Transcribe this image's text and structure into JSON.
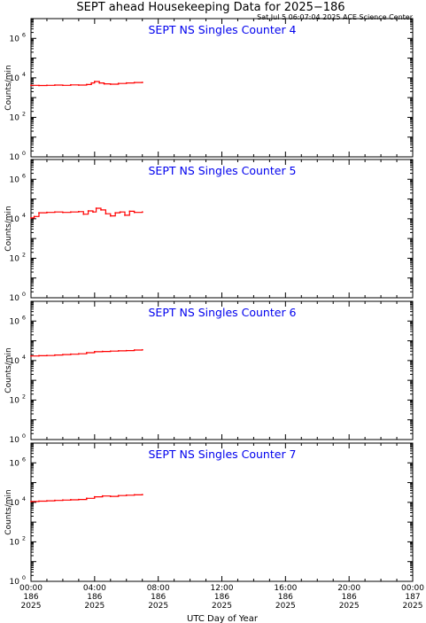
{
  "header": {
    "title": "SEPT ahead Housekeeping Data for 2025−186",
    "subtitle": "Sat Jul  5 06:07:04 2025 ACE Science Center"
  },
  "colors": {
    "series": "#ff0000",
    "panel_title": "#0000ee",
    "axis": "#000000"
  },
  "axis": {
    "xlabel": "UTC Day of Year",
    "ylabel": "Counts/min",
    "x_ticks": [
      {
        "t": 0,
        "time": "00:00",
        "doy": "186",
        "year": "2025"
      },
      {
        "t": 4,
        "time": "04:00",
        "doy": "186",
        "year": "2025"
      },
      {
        "t": 8,
        "time": "08:00",
        "doy": "186",
        "year": "2025"
      },
      {
        "t": 12,
        "time": "12:00",
        "doy": "186",
        "year": "2025"
      },
      {
        "t": 16,
        "time": "16:00",
        "doy": "186",
        "year": "2025"
      },
      {
        "t": 20,
        "time": "20:00",
        "doy": "186",
        "year": "2025"
      },
      {
        "t": 24,
        "time": "00:00",
        "doy": "187",
        "year": "2025"
      }
    ],
    "y_ticks": [
      {
        "exp": 0,
        "base": "10",
        "sup": "0"
      },
      {
        "exp": 2,
        "base": "10",
        "sup": "2"
      },
      {
        "exp": 4,
        "base": "10",
        "sup": "4"
      },
      {
        "exp": 6,
        "base": "10",
        "sup": "6"
      }
    ]
  },
  "chart_data": [
    {
      "type": "line",
      "title": "SEPT NS Singles Counter 4",
      "xlim": [
        0,
        24
      ],
      "ylim": [
        1,
        10000000
      ],
      "yscale": "log",
      "x": [
        0,
        0.5,
        1,
        1.5,
        2,
        2.5,
        3,
        3.5,
        3.8,
        4,
        4.3,
        4.6,
        5,
        5.5,
        6,
        6.5,
        7
      ],
      "y": [
        4200,
        4100,
        4200,
        4300,
        4200,
        4400,
        4300,
        4600,
        5500,
        6500,
        5500,
        5000,
        4800,
        5200,
        5500,
        5800,
        5900
      ]
    },
    {
      "type": "line",
      "title": "SEPT NS Singles Counter 5",
      "xlim": [
        0,
        24
      ],
      "ylim": [
        1,
        10000000
      ],
      "yscale": "log",
      "x": [
        0,
        0.2,
        0.5,
        1,
        1.5,
        2,
        2.5,
        3,
        3.3,
        3.6,
        3.9,
        4.1,
        4.4,
        4.7,
        5,
        5.3,
        5.6,
        5.9,
        6.2,
        6.5,
        7
      ],
      "y": [
        11000,
        13000,
        20000,
        21000,
        22000,
        21000,
        22000,
        23000,
        17000,
        25000,
        22000,
        34000,
        28000,
        18000,
        14000,
        20000,
        22000,
        15000,
        24000,
        21000,
        22000
      ]
    },
    {
      "type": "line",
      "title": "SEPT NS Singles Counter 6",
      "xlim": [
        0,
        24
      ],
      "ylim": [
        1,
        10000000
      ],
      "yscale": "log",
      "x": [
        0,
        0.5,
        1,
        1.5,
        2,
        2.5,
        3,
        3.5,
        4,
        4.5,
        5,
        5.5,
        6,
        6.5,
        7
      ],
      "y": [
        17000,
        17500,
        18000,
        19000,
        20000,
        21000,
        22000,
        25000,
        28000,
        29000,
        30000,
        31000,
        32000,
        34000,
        35000
      ]
    },
    {
      "type": "line",
      "title": "SEPT NS Singles Counter 7",
      "xlim": [
        0,
        24
      ],
      "ylim": [
        1,
        10000000
      ],
      "yscale": "log",
      "x": [
        0,
        0.5,
        1,
        1.5,
        2,
        2.5,
        3,
        3.5,
        4,
        4.5,
        5,
        5.5,
        6,
        6.5,
        7
      ],
      "y": [
        11000,
        11500,
        12000,
        12500,
        13000,
        13500,
        14000,
        16000,
        19000,
        21000,
        20000,
        22000,
        23000,
        24000,
        24500
      ]
    }
  ]
}
